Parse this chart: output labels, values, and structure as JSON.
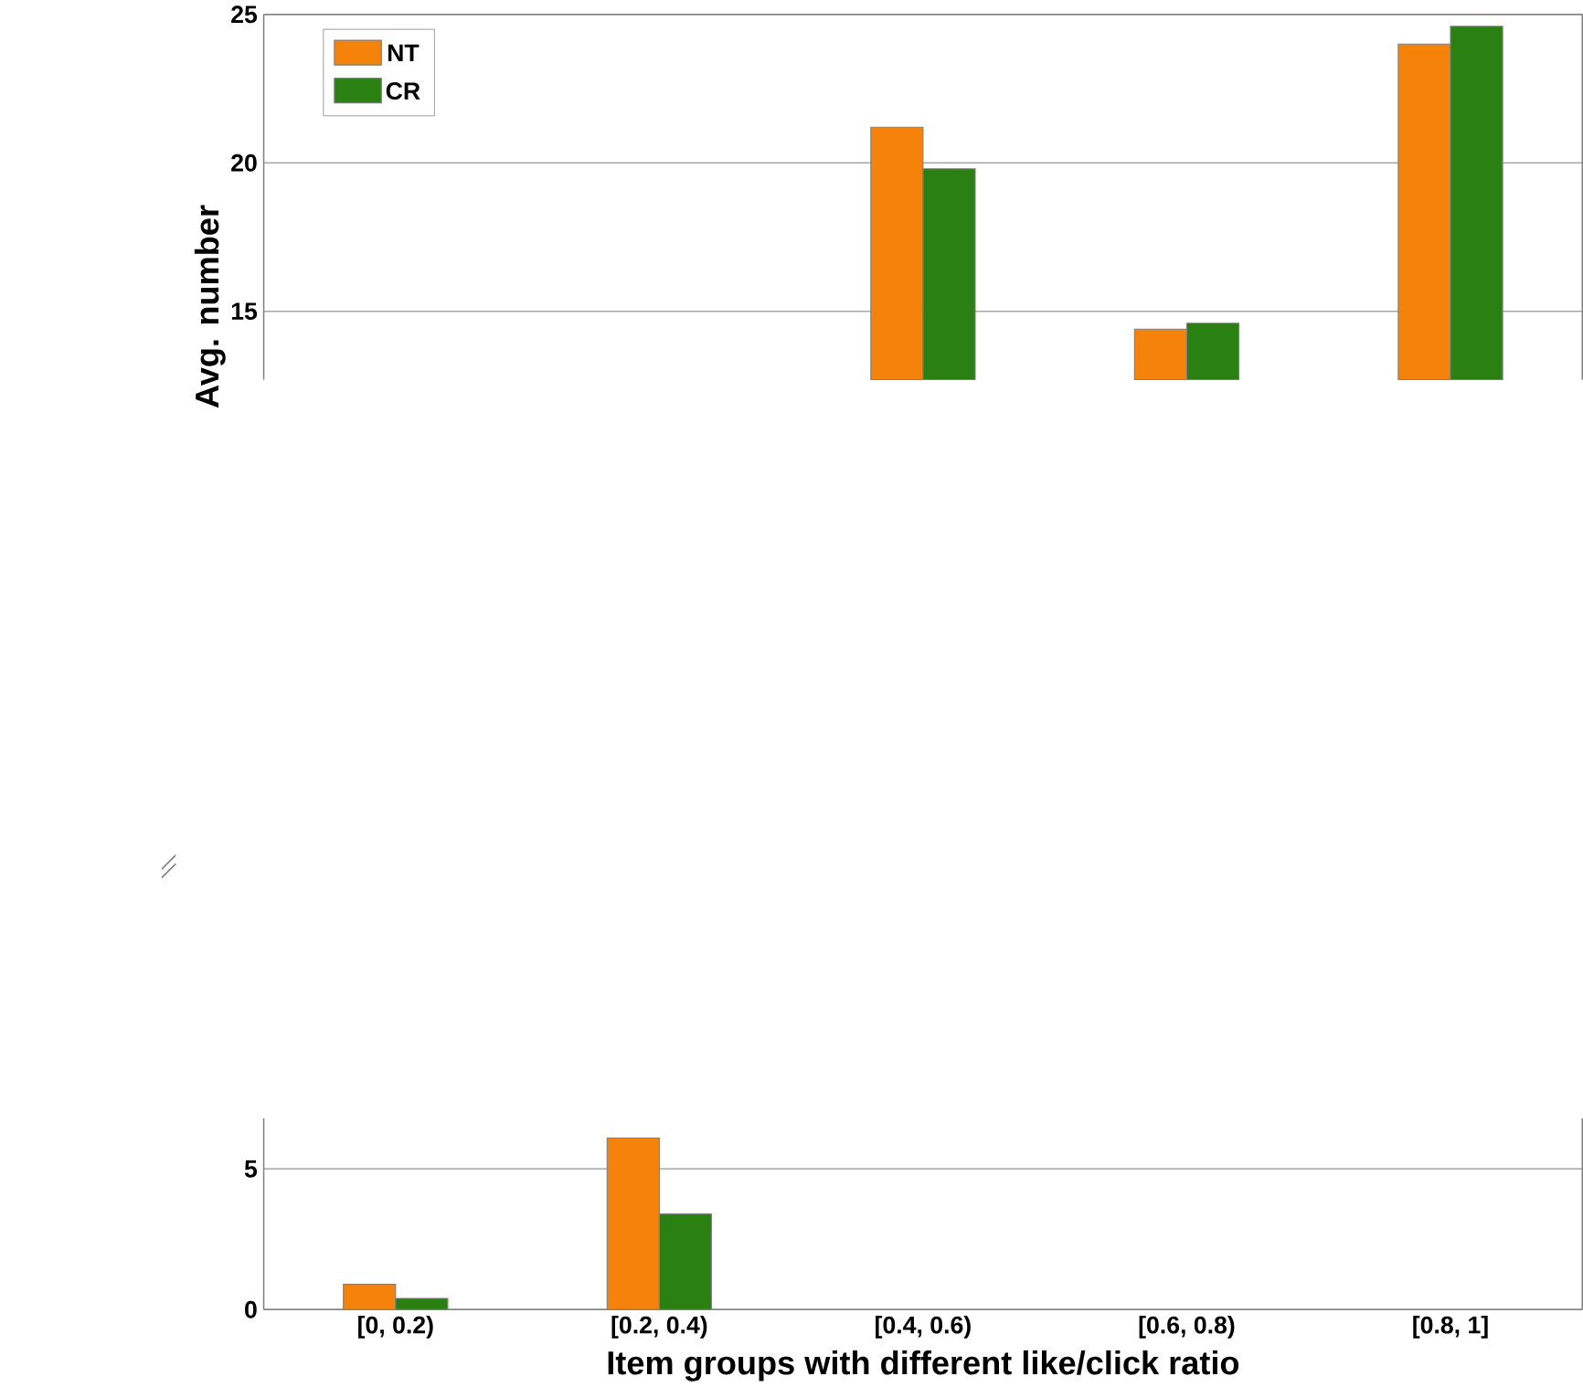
{
  "chart_data": [
    {
      "type": "bar",
      "ylabel": "Avg. number",
      "categories": [
        null,
        null,
        null,
        null,
        null
      ],
      "series": [
        {
          "name": "NT",
          "color": "#f5820a",
          "values": [
            null,
            null,
            21.2,
            14.4,
            24.0
          ]
        },
        {
          "name": "CR",
          "color": "#2a8010",
          "values": [
            null,
            null,
            19.8,
            14.6,
            24.6
          ]
        }
      ],
      "ylim": [
        12.7,
        25
      ],
      "yticks": [
        15,
        20,
        25
      ],
      "tick_labels": "y",
      "grid": "y",
      "legend": "top left"
    },
    {
      "type": "bar",
      "xlabel": "Item groups with different like/click ratio",
      "categories": [
        "[0, 0.2)",
        "[0.2, 0.4)",
        "[0.4, 0.6)",
        "[0.6, 0.8)",
        "[0.8, 1]"
      ],
      "series": [
        {
          "color": "#f5820a",
          "values": [
            0.9,
            6.1,
            null,
            null,
            null
          ]
        },
        {
          "color": "#2a8010",
          "values": [
            0.4,
            3.4,
            null,
            null,
            null
          ]
        }
      ],
      "ylim": [
        0,
        6.8
      ],
      "yticks": [
        0,
        5
      ],
      "grid": "y"
    }
  ]
}
